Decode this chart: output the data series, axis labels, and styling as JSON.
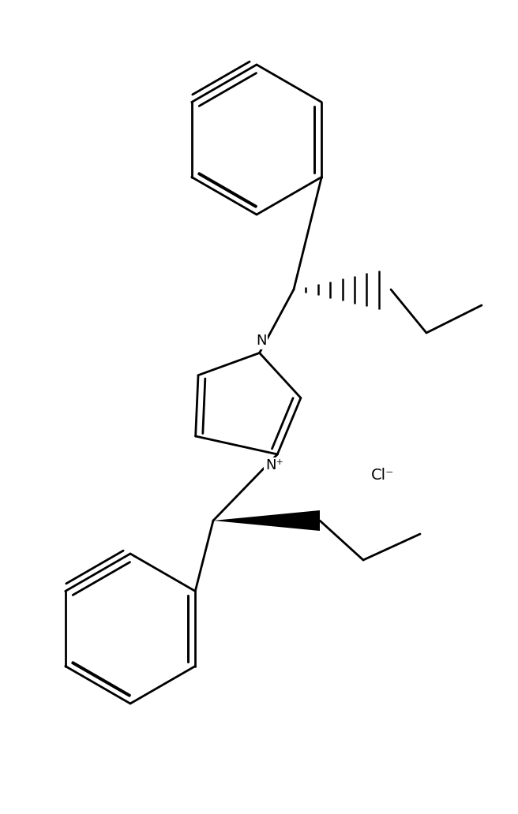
{
  "background_color": "#ffffff",
  "line_color": "#000000",
  "line_width": 2.0,
  "fig_width": 6.56,
  "fig_height": 10.32,
  "cl_minus_text": "Cl⁻",
  "n_plus_text": "N⁺",
  "n_text": "N"
}
